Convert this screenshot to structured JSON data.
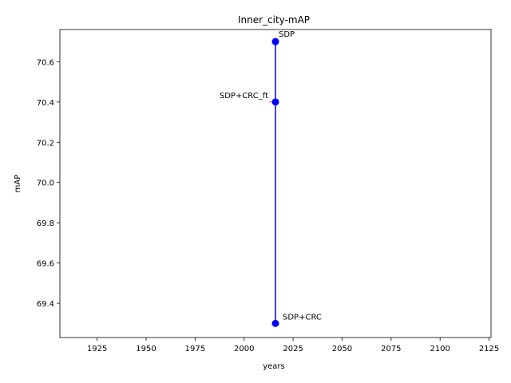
{
  "chart_data": {
    "type": "line",
    "title": "Inner_city-mAP",
    "xlabel": "years",
    "ylabel": "mAP",
    "xlim": [
      1906,
      2126
    ],
    "ylim": [
      69.23,
      70.76
    ],
    "xticks": [
      1925,
      1950,
      1975,
      2000,
      2025,
      2050,
      2075,
      2100,
      2125
    ],
    "yticks": [
      69.4,
      69.6,
      69.8,
      70.0,
      70.2,
      70.4,
      70.6
    ],
    "ytick_labels": [
      "69.4",
      "69.6",
      "69.8",
      "70.0",
      "70.2",
      "70.4",
      "70.6"
    ],
    "grid": false,
    "series": [
      {
        "color": "#0000ff",
        "points": [
          {
            "x": 2016,
            "y": 70.7,
            "label": "SDP"
          },
          {
            "x": 2016,
            "y": 70.4,
            "label": "SDP+CRC_ft"
          },
          {
            "x": 2016,
            "y": 69.3,
            "label": "SDP+CRC"
          }
        ]
      }
    ],
    "annotation_arrow_color": "#ff0000"
  }
}
